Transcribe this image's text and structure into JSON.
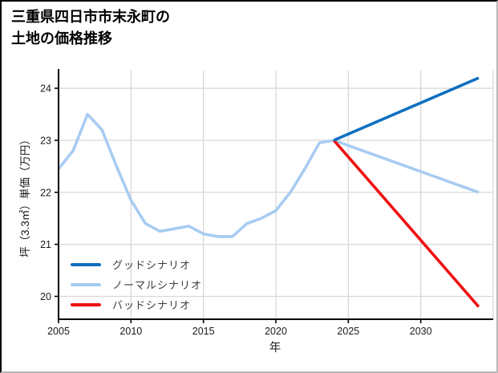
{
  "title": {
    "line1": "三重県四日市市末永町の",
    "line2": "土地の価格推移"
  },
  "chart_data": {
    "type": "line",
    "title": "三重県四日市市末永町の土地の価格推移",
    "xlabel": "年",
    "ylabel": "坪（3.3㎡）単価（万円）",
    "xlim": [
      2005,
      2035
    ],
    "ylim": [
      19.56,
      24.34
    ],
    "x_ticks": [
      2005,
      2010,
      2015,
      2020,
      2025,
      2030
    ],
    "x_gridlines": [
      2010,
      2015,
      2020,
      2025,
      2030,
      2035
    ],
    "y_ticks": [
      20,
      21,
      22,
      23,
      24
    ],
    "grid": true,
    "legend_position": "lower left",
    "unit": "万円/坪",
    "colors": {
      "good": "#0e6fc0",
      "normal": "#a8ccf2",
      "bad": "#ee1111",
      "grid": "#d8d8d8",
      "axis": "#000000",
      "tick_text": "#1a1a1a"
    },
    "series": [
      {
        "name": "グッドシナリオ",
        "key": "good",
        "color": "#0e6fc0",
        "z": 3,
        "x": [
          2024,
          2034
        ],
        "values": [
          23.0,
          24.2
        ]
      },
      {
        "name": "ノーマルシナリオ",
        "key": "normal",
        "color": "#a8ccf2",
        "z": 1,
        "x": [
          2005,
          2006,
          2007,
          2008,
          2009,
          2010,
          2011,
          2012,
          2013,
          2014,
          2015,
          2016,
          2017,
          2018,
          2019,
          2020,
          2021,
          2022,
          2023,
          2024,
          2034
        ],
        "values": [
          22.45,
          22.8,
          23.5,
          23.2,
          22.5,
          21.85,
          21.4,
          21.25,
          21.3,
          21.35,
          21.2,
          21.15,
          21.15,
          21.4,
          21.5,
          21.65,
          22.0,
          22.45,
          22.95,
          23.0,
          22.0
        ]
      },
      {
        "name": "バッドシナリオ",
        "key": "bad",
        "color": "#ee1111",
        "z": 2,
        "x": [
          2024,
          2034
        ],
        "values": [
          23.0,
          19.8
        ]
      }
    ]
  },
  "legend": {
    "items": [
      {
        "label": "グッドシナリオ",
        "color": "#0e6fc0"
      },
      {
        "label": "ノーマルシナリオ",
        "color": "#a8ccf2"
      },
      {
        "label": "バッドシナリオ",
        "color": "#ee1111"
      }
    ]
  }
}
